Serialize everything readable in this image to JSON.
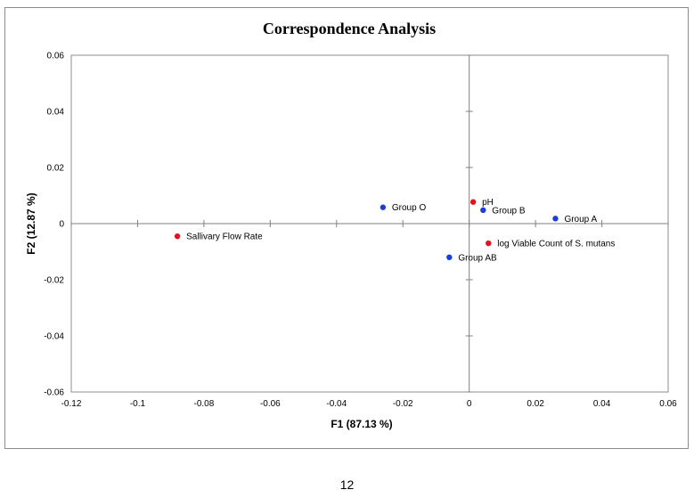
{
  "page": {
    "number": "12"
  },
  "chart_data": {
    "type": "scatter",
    "title": "Correspondence Analysis",
    "xlabel": "F1 (87.13 %)",
    "ylabel": "F2 (12.87 %)",
    "xlim": [
      -0.12,
      0.06
    ],
    "ylim": [
      -0.06,
      0.06
    ],
    "x_ticks": [
      -0.12,
      -0.1,
      -0.08,
      -0.06,
      -0.04,
      -0.02,
      0,
      0.02,
      0.04,
      0.06
    ],
    "x_tick_labels": [
      "-0.12",
      "-0.1",
      "-0.08",
      "-0.06",
      "-0.04",
      "-0.02",
      "0",
      "0.02",
      "0.04",
      "0.06"
    ],
    "y_ticks": [
      0.06,
      0.04,
      0.02,
      0,
      -0.02,
      -0.04,
      -0.06
    ],
    "y_tick_labels": [
      "0.06",
      "0.04",
      "0.02",
      "0",
      "-0.02",
      "-0.04",
      "-0.06"
    ],
    "grid": false,
    "legend": "none",
    "colors": {
      "blue": "#1a3fd6",
      "red": "#e0141e"
    },
    "points": [
      {
        "label": "Group O",
        "x": -0.026,
        "y": 0.0058,
        "color": "blue"
      },
      {
        "label": "pH",
        "x": 0.0012,
        "y": 0.0077,
        "color": "red"
      },
      {
        "label": "Group B",
        "x": 0.0042,
        "y": 0.0048,
        "color": "blue"
      },
      {
        "label": "Group A",
        "x": 0.026,
        "y": 0.0018,
        "color": "blue"
      },
      {
        "label": "Sallivary Flow Rate",
        "x": -0.088,
        "y": -0.0045,
        "color": "red"
      },
      {
        "label": "log Viable Count of S. mutans",
        "x": 0.0058,
        "y": -0.007,
        "color": "red"
      },
      {
        "label": "Group AB",
        "x": -0.006,
        "y": -0.012,
        "color": "blue"
      }
    ]
  }
}
